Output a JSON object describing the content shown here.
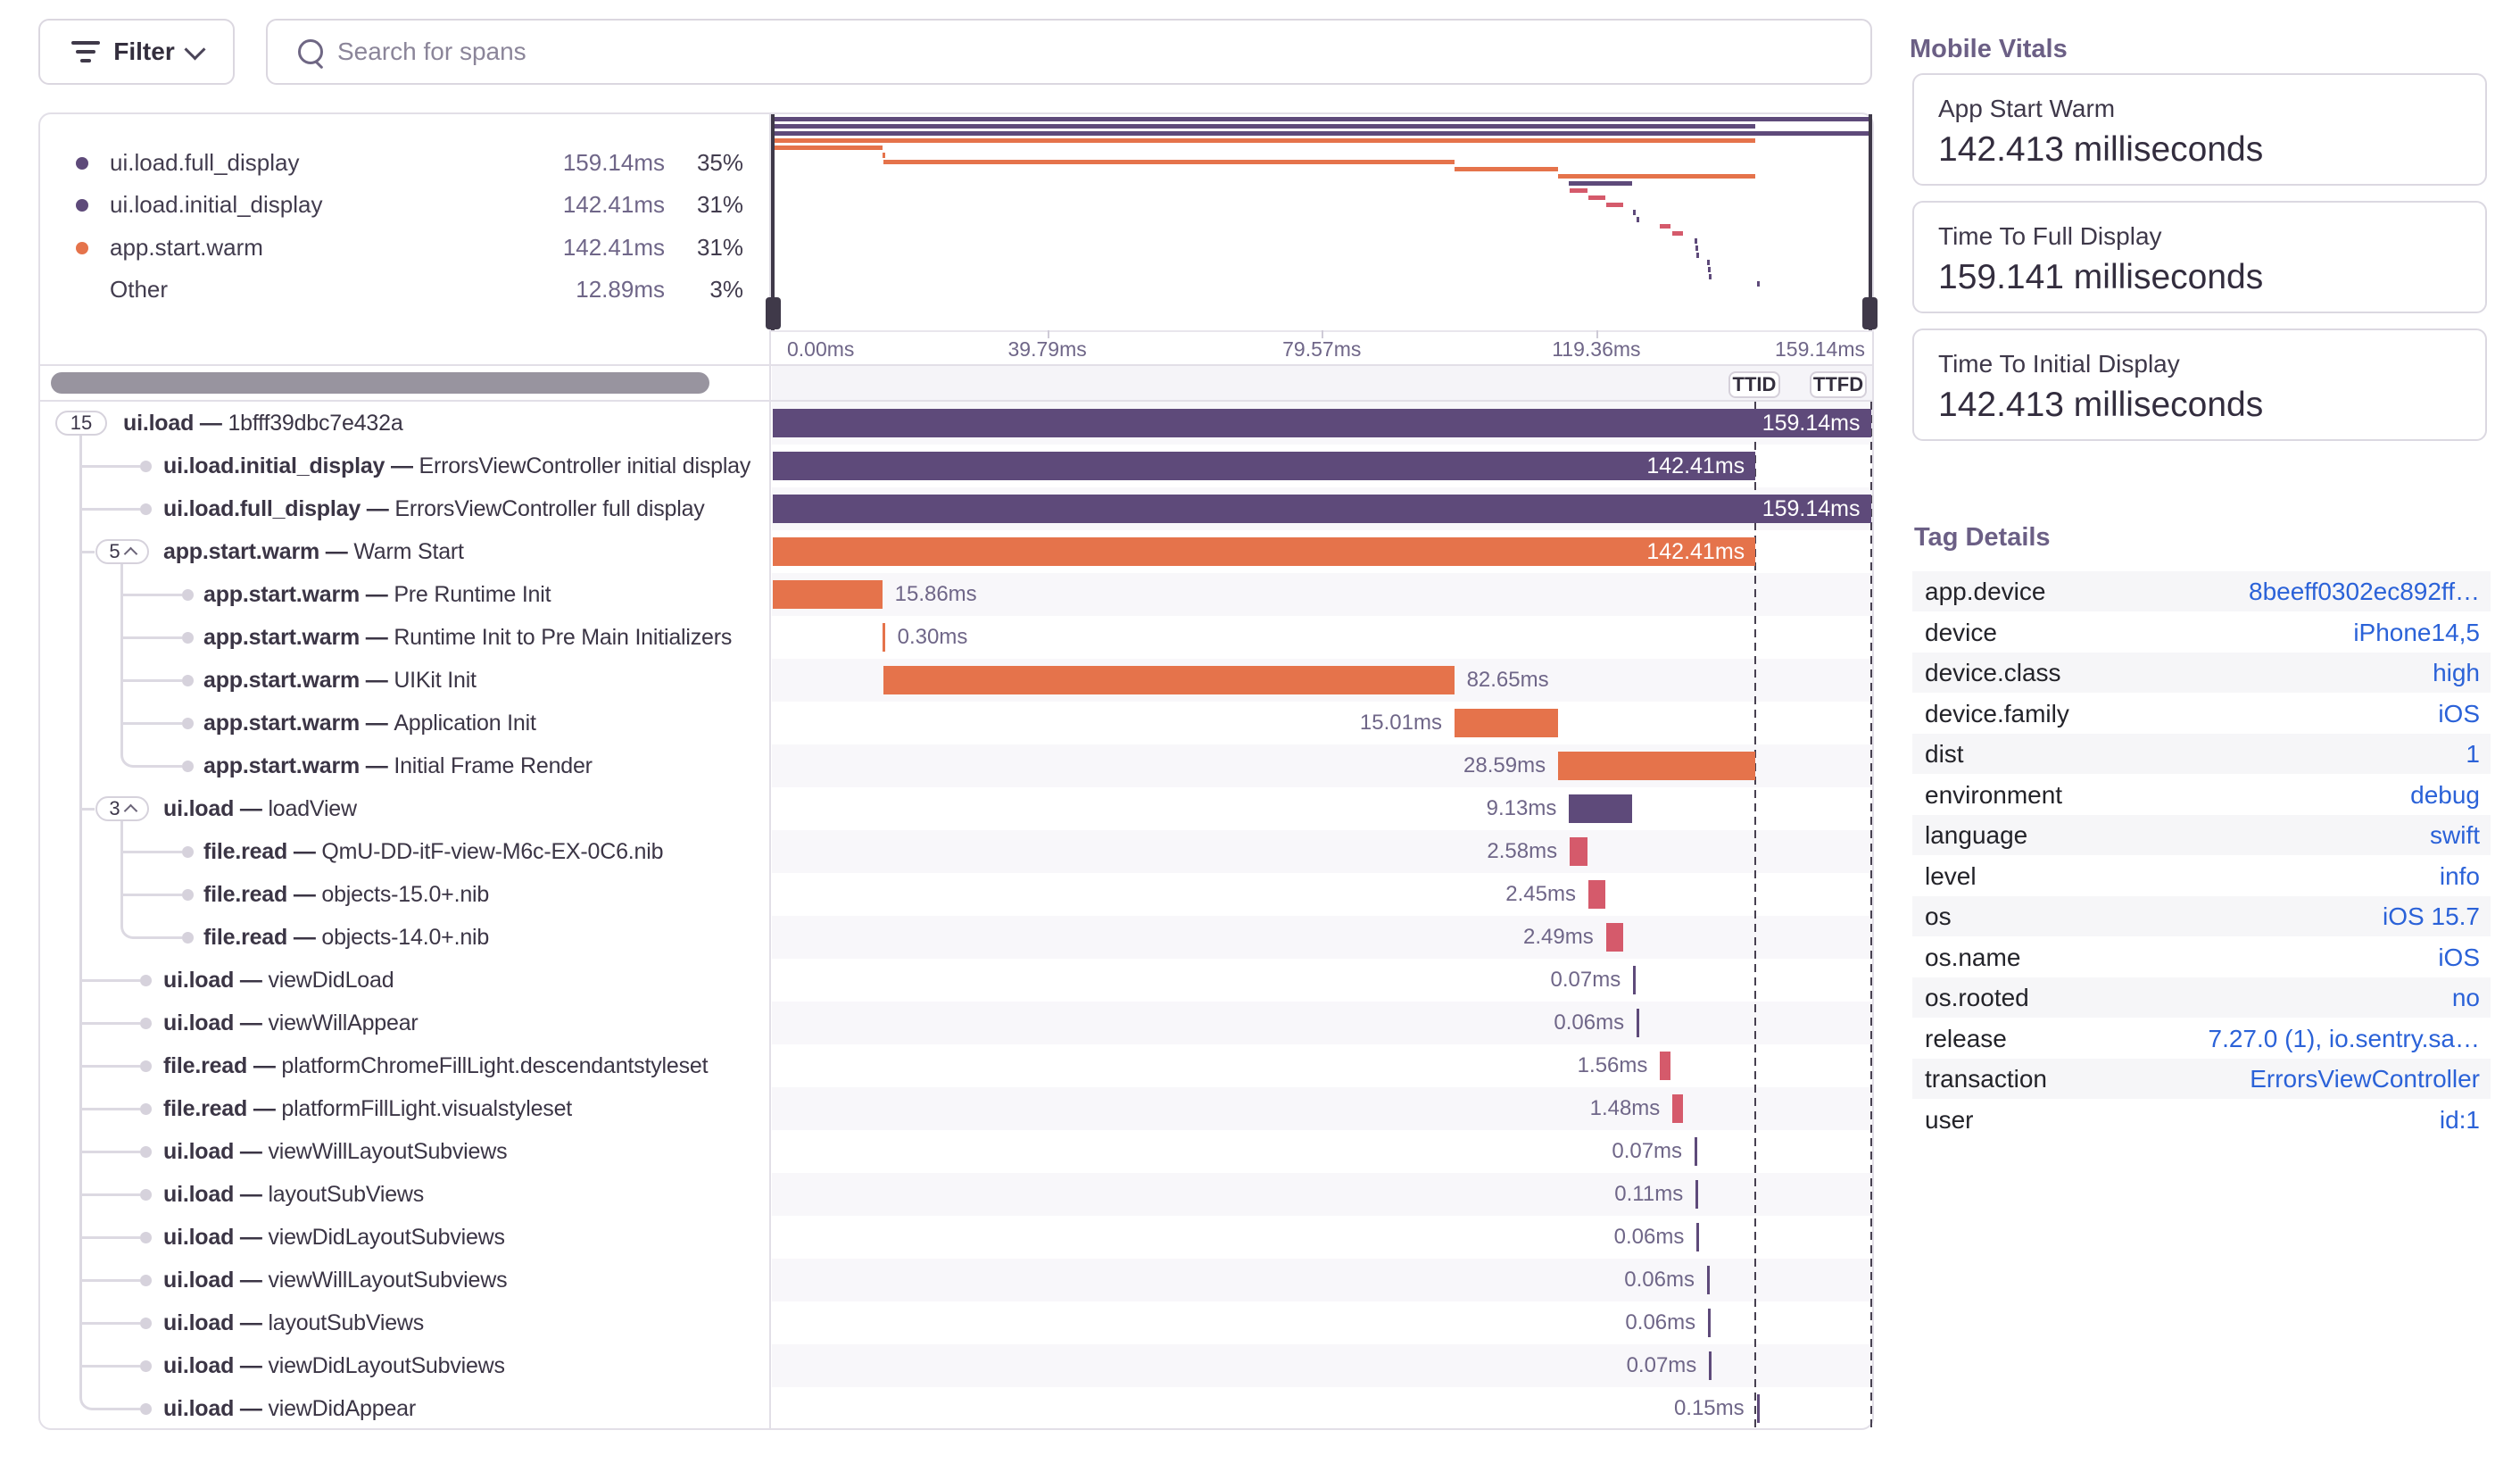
{
  "toolbar": {
    "filter_label": "Filter",
    "search_placeholder": "Search for spans"
  },
  "legend": {
    "rows": [
      {
        "name": "ui.load.full_display",
        "duration": "159.14ms",
        "pct": "35%",
        "color": "#5e4a7a"
      },
      {
        "name": "ui.load.initial_display",
        "duration": "142.41ms",
        "pct": "31%",
        "color": "#5e4a7a"
      },
      {
        "name": "app.start.warm",
        "duration": "142.41ms",
        "pct": "31%",
        "color": "#e5734b"
      },
      {
        "name": "Other",
        "duration": "12.89ms",
        "pct": "3%",
        "color": null
      }
    ]
  },
  "timeline": {
    "total_ms": 159.14,
    "ticks": [
      {
        "label": "0.00ms",
        "ms": 0
      },
      {
        "label": "39.79ms",
        "ms": 39.785
      },
      {
        "label": "79.57ms",
        "ms": 79.57
      },
      {
        "label": "119.36ms",
        "ms": 119.355
      },
      {
        "label": "159.14ms",
        "ms": 159.14
      }
    ],
    "ttid_label": "TTID",
    "ttfd_label": "TTFD",
    "ttid_ms": 142.41,
    "ttfd_ms": 159.14
  },
  "chart_data": {
    "type": "gantt-waterfall",
    "unit": "ms",
    "spans": [
      {
        "op": "ui.load",
        "desc": "1bfff39dbc7e432a",
        "level": 0,
        "chip": "15",
        "chevron": false,
        "start": 0,
        "dur": 159.14,
        "color": "purple",
        "label": "159.14ms",
        "label_pos": "inside"
      },
      {
        "op": "ui.load.initial_display",
        "desc": "ErrorsViewController initial display",
        "level": 1,
        "chip": null,
        "start": 0,
        "dur": 142.41,
        "color": "purple",
        "label": "142.41ms",
        "label_pos": "inside"
      },
      {
        "op": "ui.load.full_display",
        "desc": "ErrorsViewController full display",
        "level": 1,
        "chip": null,
        "start": 0,
        "dur": 159.14,
        "color": "purple",
        "label": "159.14ms",
        "label_pos": "inside"
      },
      {
        "op": "app.start.warm",
        "desc": "Warm Start",
        "level": 1,
        "chip": "5",
        "chevron": true,
        "start": 0,
        "dur": 142.41,
        "color": "orange",
        "label": "142.41ms",
        "label_pos": "inside"
      },
      {
        "op": "app.start.warm",
        "desc": "Pre Runtime Init",
        "level": 2,
        "chip": null,
        "start": 0,
        "dur": 15.86,
        "color": "orange",
        "label": "15.86ms",
        "label_pos": "right"
      },
      {
        "op": "app.start.warm",
        "desc": "Runtime Init to Pre Main Initializers",
        "level": 2,
        "chip": null,
        "start": 15.86,
        "dur": 0.3,
        "color": "orange",
        "label": "0.30ms",
        "label_pos": "right"
      },
      {
        "op": "app.start.warm",
        "desc": "UIKit Init",
        "level": 2,
        "chip": null,
        "start": 16.1,
        "dur": 82.65,
        "color": "orange",
        "label": "82.65ms",
        "label_pos": "right"
      },
      {
        "op": "app.start.warm",
        "desc": "Application Init",
        "level": 2,
        "chip": null,
        "start": 98.8,
        "dur": 15.01,
        "color": "orange",
        "label": "15.01ms",
        "label_pos": "left"
      },
      {
        "op": "app.start.warm",
        "desc": "Initial Frame Render",
        "level": 2,
        "chip": null,
        "start": 113.82,
        "dur": 28.59,
        "color": "orange",
        "label": "28.59ms",
        "label_pos": "left"
      },
      {
        "op": "ui.load",
        "desc": "loadView",
        "level": 1,
        "chip": "3",
        "chevron": true,
        "start": 115.4,
        "dur": 9.13,
        "color": "purple",
        "label": "9.13ms",
        "label_pos": "left"
      },
      {
        "op": "file.read",
        "desc": "QmU-DD-itF-view-M6c-EX-0C6.nib",
        "level": 2,
        "chip": null,
        "start": 115.5,
        "dur": 2.58,
        "color": "red",
        "label": "2.58ms",
        "label_pos": "left"
      },
      {
        "op": "file.read",
        "desc": "objects-15.0+.nib",
        "level": 2,
        "chip": null,
        "start": 118.2,
        "dur": 2.45,
        "color": "red",
        "label": "2.45ms",
        "label_pos": "left"
      },
      {
        "op": "file.read",
        "desc": "objects-14.0+.nib",
        "level": 2,
        "chip": null,
        "start": 120.75,
        "dur": 2.49,
        "color": "red",
        "label": "2.49ms",
        "label_pos": "left"
      },
      {
        "op": "ui.load",
        "desc": "viewDidLoad",
        "level": 1,
        "chip": null,
        "start": 124.7,
        "dur": 0.07,
        "color": "purple",
        "label": "0.07ms",
        "label_pos": "left"
      },
      {
        "op": "ui.load",
        "desc": "viewWillAppear",
        "level": 1,
        "chip": null,
        "start": 125.2,
        "dur": 0.06,
        "color": "purple",
        "label": "0.06ms",
        "label_pos": "left"
      },
      {
        "op": "file.read",
        "desc": "platformChromeFillLight.descendantstyleset",
        "level": 1,
        "chip": null,
        "start": 128.6,
        "dur": 1.56,
        "color": "red",
        "label": "1.56ms",
        "label_pos": "left"
      },
      {
        "op": "file.read",
        "desc": "platformFillLight.visualstyleset",
        "level": 1,
        "chip": null,
        "start": 130.4,
        "dur": 1.48,
        "color": "red",
        "label": "1.48ms",
        "label_pos": "left"
      },
      {
        "op": "ui.load",
        "desc": "viewWillLayoutSubviews",
        "level": 1,
        "chip": null,
        "start": 133.6,
        "dur": 0.07,
        "color": "purple",
        "label": "0.07ms",
        "label_pos": "left"
      },
      {
        "op": "ui.load",
        "desc": "layoutSubViews",
        "level": 1,
        "chip": null,
        "start": 133.75,
        "dur": 0.11,
        "color": "purple",
        "label": "0.11ms",
        "label_pos": "left"
      },
      {
        "op": "ui.load",
        "desc": "viewDidLayoutSubviews",
        "level": 1,
        "chip": null,
        "start": 133.9,
        "dur": 0.06,
        "color": "purple",
        "label": "0.06ms",
        "label_pos": "left"
      },
      {
        "op": "ui.load",
        "desc": "viewWillLayoutSubviews",
        "level": 1,
        "chip": null,
        "start": 135.4,
        "dur": 0.06,
        "color": "purple",
        "label": "0.06ms",
        "label_pos": "left"
      },
      {
        "op": "ui.load",
        "desc": "layoutSubViews",
        "level": 1,
        "chip": null,
        "start": 135.55,
        "dur": 0.06,
        "color": "purple",
        "label": "0.06ms",
        "label_pos": "left"
      },
      {
        "op": "ui.load",
        "desc": "viewDidLayoutSubviews",
        "level": 1,
        "chip": null,
        "start": 135.7,
        "dur": 0.07,
        "color": "purple",
        "label": "0.07ms",
        "label_pos": "left"
      },
      {
        "op": "ui.load",
        "desc": "viewDidAppear",
        "level": 1,
        "chip": null,
        "start": 142.6,
        "dur": 0.15,
        "color": "purple",
        "label": "0.15ms",
        "label_pos": "left"
      }
    ]
  },
  "vitals": {
    "title": "Mobile Vitals",
    "cards": [
      {
        "label": "App Start Warm",
        "value": "142.413 milliseconds"
      },
      {
        "label": "Time To Full Display",
        "value": "159.141 milliseconds"
      },
      {
        "label": "Time To Initial Display",
        "value": "142.413 milliseconds"
      }
    ]
  },
  "tags": {
    "title": "Tag Details",
    "rows": [
      {
        "key": "app.device",
        "value": "8beeff0302ec892ff…"
      },
      {
        "key": "device",
        "value": "iPhone14,5"
      },
      {
        "key": "device.class",
        "value": "high"
      },
      {
        "key": "device.family",
        "value": "iOS"
      },
      {
        "key": "dist",
        "value": "1"
      },
      {
        "key": "environment",
        "value": "debug"
      },
      {
        "key": "language",
        "value": "swift"
      },
      {
        "key": "level",
        "value": "info"
      },
      {
        "key": "os",
        "value": "iOS 15.7"
      },
      {
        "key": "os.name",
        "value": "iOS"
      },
      {
        "key": "os.rooted",
        "value": "no"
      },
      {
        "key": "release",
        "value": "7.27.0 (1), io.sentry.sa…"
      },
      {
        "key": "transaction",
        "value": "ErrorsViewController"
      },
      {
        "key": "user",
        "value": "id:1"
      }
    ]
  },
  "colors": {
    "purple": "#5e4a7a",
    "orange": "#e5734b",
    "red": "#d55a6b",
    "tick": "#5e4a7a"
  }
}
